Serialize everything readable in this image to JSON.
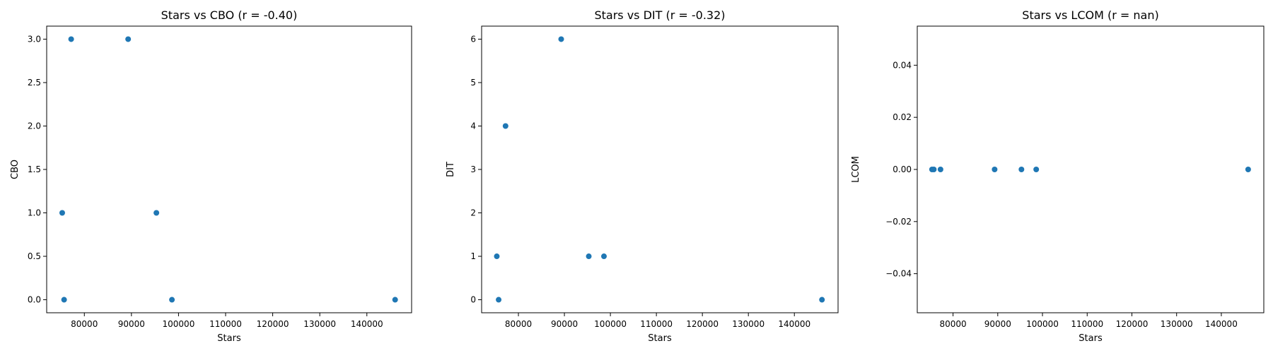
{
  "chart_data": [
    {
      "type": "scatter",
      "title": "Stars vs CBO (r = -0.40)",
      "xlabel": "Stars",
      "ylabel": "CBO",
      "xlim": [
        72000,
        149500
      ],
      "ylim": [
        -0.15,
        3.15
      ],
      "xticks": [
        80000,
        90000,
        100000,
        110000,
        120000,
        130000,
        140000
      ],
      "xtick_labels": [
        "80000",
        "90000",
        "100000",
        "110000",
        "120000",
        "130000",
        "140000"
      ],
      "yticks": [
        0.0,
        0.5,
        1.0,
        1.5,
        2.0,
        2.5,
        3.0
      ],
      "ytick_labels": [
        "0.0",
        "0.5",
        "1.0",
        "1.5",
        "2.0",
        "2.5",
        "3.0"
      ],
      "color": "#1f77b4",
      "grid": false,
      "points": [
        {
          "x": 75300,
          "y": 1
        },
        {
          "x": 75700,
          "y": 0
        },
        {
          "x": 77200,
          "y": 3
        },
        {
          "x": 89300,
          "y": 3
        },
        {
          "x": 95300,
          "y": 1
        },
        {
          "x": 98600,
          "y": 0
        },
        {
          "x": 146000,
          "y": 0
        }
      ]
    },
    {
      "type": "scatter",
      "title": "Stars vs DIT (r = -0.32)",
      "xlabel": "Stars",
      "ylabel": "DIT",
      "xlim": [
        72000,
        149500
      ],
      "ylim": [
        -0.3,
        6.3
      ],
      "xticks": [
        80000,
        90000,
        100000,
        110000,
        120000,
        130000,
        140000
      ],
      "xtick_labels": [
        "80000",
        "90000",
        "100000",
        "110000",
        "120000",
        "130000",
        "140000"
      ],
      "yticks": [
        0,
        1,
        2,
        3,
        4,
        5,
        6
      ],
      "ytick_labels": [
        "0",
        "1",
        "2",
        "3",
        "4",
        "5",
        "6"
      ],
      "color": "#1f77b4",
      "grid": false,
      "points": [
        {
          "x": 75300,
          "y": 1
        },
        {
          "x": 75700,
          "y": 0
        },
        {
          "x": 77200,
          "y": 4
        },
        {
          "x": 89300,
          "y": 6
        },
        {
          "x": 95300,
          "y": 1
        },
        {
          "x": 98600,
          "y": 1
        },
        {
          "x": 146000,
          "y": 0
        }
      ]
    },
    {
      "type": "scatter",
      "title": "Stars vs LCOM (r = nan)",
      "xlabel": "Stars",
      "ylabel": "LCOM",
      "xlim": [
        72000,
        149500
      ],
      "ylim": [
        -0.055,
        0.055
      ],
      "xticks": [
        80000,
        90000,
        100000,
        110000,
        120000,
        130000,
        140000
      ],
      "xtick_labels": [
        "80000",
        "90000",
        "100000",
        "110000",
        "120000",
        "130000",
        "140000"
      ],
      "yticks": [
        -0.04,
        -0.02,
        0.0,
        0.02,
        0.04
      ],
      "ytick_labels": [
        "−0.04",
        "−0.02",
        "0.00",
        "0.02",
        "0.04"
      ],
      "color": "#1f77b4",
      "grid": false,
      "points": [
        {
          "x": 75300,
          "y": 0
        },
        {
          "x": 75700,
          "y": 0
        },
        {
          "x": 77200,
          "y": 0
        },
        {
          "x": 89300,
          "y": 0
        },
        {
          "x": 95300,
          "y": 0
        },
        {
          "x": 98600,
          "y": 0
        },
        {
          "x": 146000,
          "y": 0
        }
      ]
    }
  ]
}
